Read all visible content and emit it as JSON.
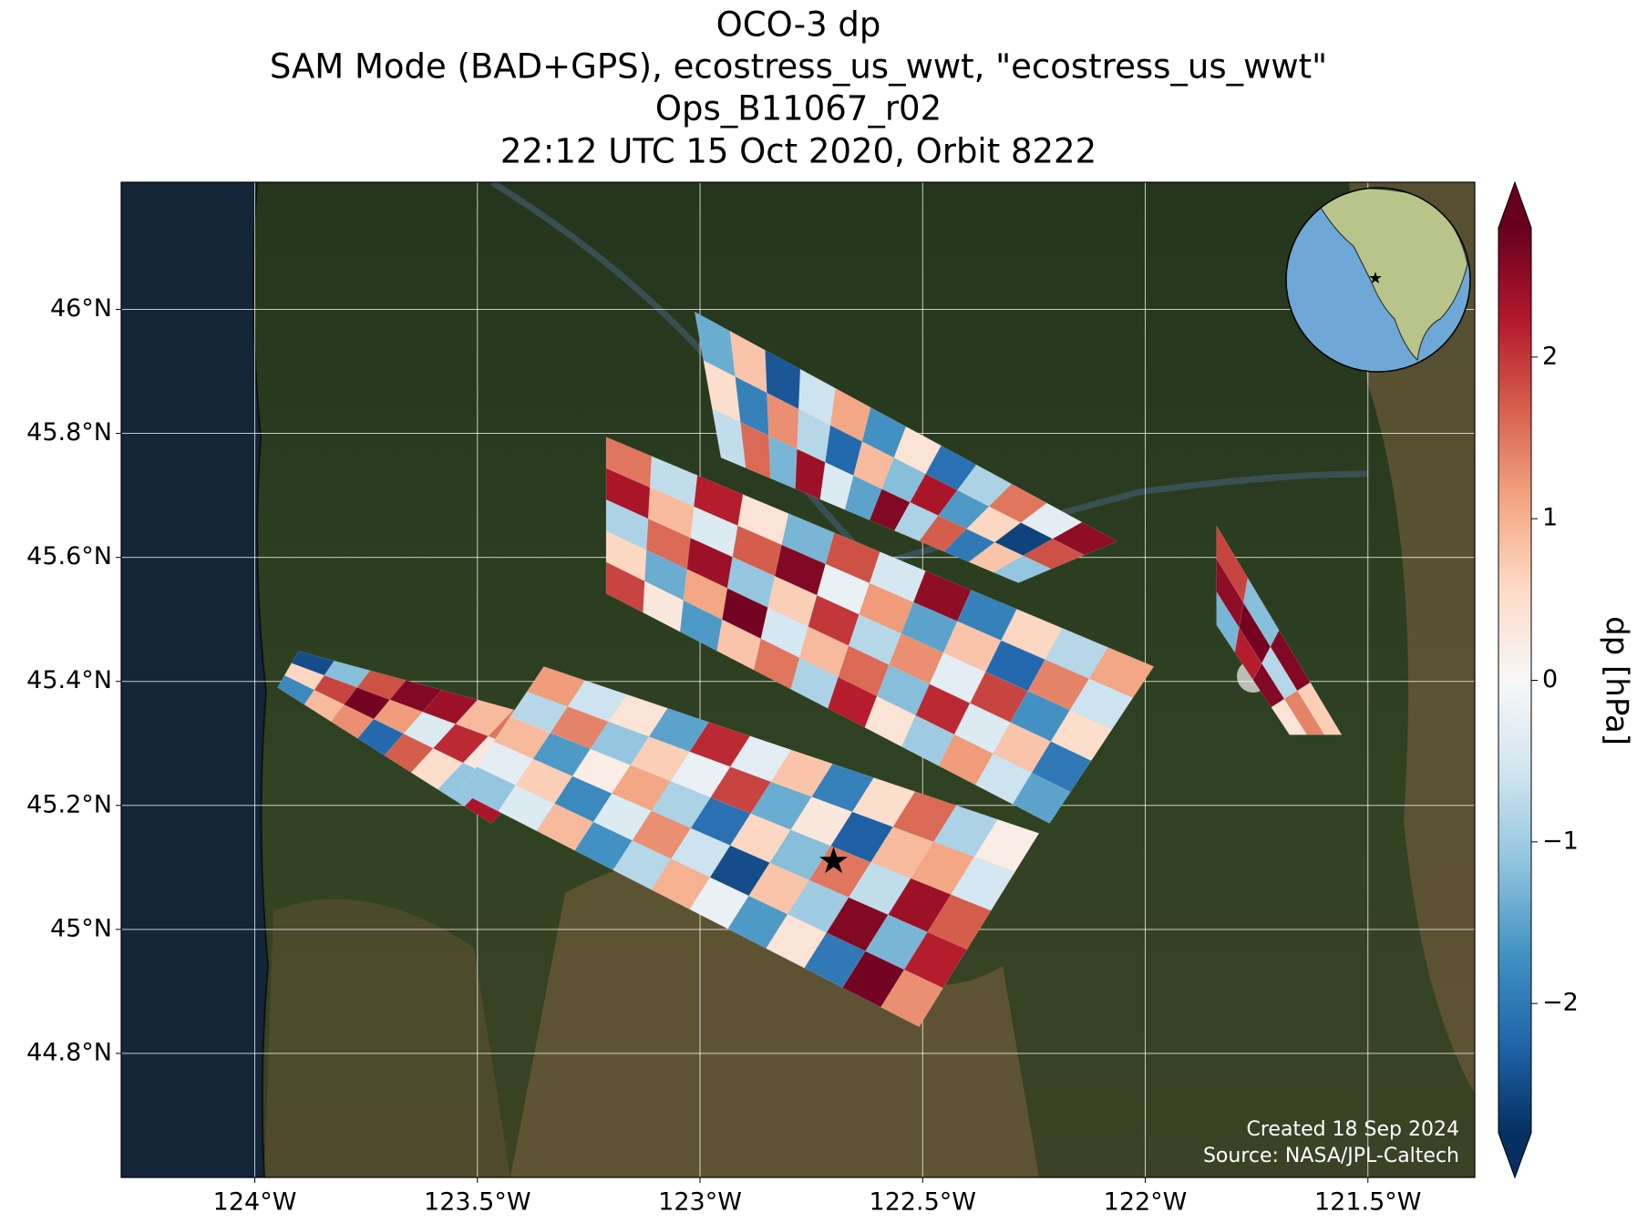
{
  "chart_data": {
    "type": "swath_map",
    "title_lines": [
      "OCO-3 dp",
      "SAM Mode (BAD+GPS), ecostress_us_wwt, \"ecostress_us_wwt\"",
      "Ops_B11067_r02",
      "22:12 UTC 15 Oct 2020, Orbit 8222"
    ],
    "colorbar_label": "dp [hPa]",
    "credits": [
      "Created 18 Sep 2024",
      "Source: NASA/JPL-Caltech"
    ],
    "xlim": [
      -124.3,
      -121.26
    ],
    "ylim": [
      44.6,
      46.205
    ],
    "xticks": [
      {
        "value": -124,
        "label": "124°W"
      },
      {
        "value": -123.5,
        "label": "123.5°W"
      },
      {
        "value": -123,
        "label": "123°W"
      },
      {
        "value": -122.5,
        "label": "122.5°W"
      },
      {
        "value": -122,
        "label": "122°W"
      },
      {
        "value": -121.5,
        "label": "121.5°W"
      }
    ],
    "yticks": [
      {
        "value": 44.8,
        "label": "44.8°N"
      },
      {
        "value": 45,
        "label": "45°N"
      },
      {
        "value": 45.2,
        "label": "45.2°N"
      },
      {
        "value": 45.4,
        "label": "45.4°N"
      },
      {
        "value": 45.6,
        "label": "45.6°N"
      },
      {
        "value": 45.8,
        "label": "45.8°N"
      },
      {
        "value": 46,
        "label": "46°N"
      }
    ],
    "grid": true,
    "clim": [
      -2.8,
      2.8
    ],
    "cticks": [
      {
        "value": -2,
        "label": "−2"
      },
      {
        "value": -1,
        "label": "−1"
      },
      0,
      1,
      2
    ],
    "colormap_colors": [
      "#053061",
      "#2166ac",
      "#4393c3",
      "#92c5de",
      "#d1e5f0",
      "#f7f7f7",
      "#fddbc7",
      "#f4a582",
      "#d6604d",
      "#b2182b",
      "#67001f"
    ],
    "target": {
      "lon": -122.7,
      "lat": 45.107,
      "color": "#ff0000"
    },
    "swaths": [
      {
        "corners": [
          [
            -123.902,
            45.449
          ],
          [
            -123.258,
            45.323
          ],
          [
            -123.469,
            45.171
          ],
          [
            -123.949,
            45.39
          ]
        ],
        "values": [
          [
            -2.5,
            -1.2,
            1.8,
            2.6,
            2.4,
            0.9,
            1.5,
            -0.8
          ],
          [
            0.6,
            1.9,
            2.7,
            1.2,
            -0.4,
            2.1,
            0.3,
            1.4
          ],
          [
            -1.8,
            0.9,
            1.3,
            -2.2,
            1.7,
            0.5,
            -1.1,
            2.3
          ]
        ]
      },
      {
        "corners": [
          [
            -123.351,
            45.424
          ],
          [
            -122.239,
            45.155
          ],
          [
            -122.508,
            44.843
          ],
          [
            -123.539,
            45.222
          ]
        ],
        "values": [
          [
            1.2,
            -0.6,
            0.4,
            -1.5,
            2.1,
            -0.3,
            0.8,
            -1.9,
            0.5,
            1.6,
            -0.9,
            0.2
          ],
          [
            -0.8,
            1.4,
            -1.1,
            0.7,
            -0.2,
            1.9,
            -1.4,
            0.3,
            -2.3,
            0.9,
            1.1,
            -0.5
          ],
          [
            0.9,
            -1.6,
            0.2,
            1.1,
            -0.9,
            -2.1,
            0.6,
            -1.2,
            1.5,
            -0.7,
            2.4,
            1.7
          ],
          [
            -0.3,
            0.7,
            -1.8,
            -0.4,
            1.3,
            -0.6,
            -2.5,
            0.8,
            -1.0,
            2.6,
            -1.3,
            2.2
          ],
          [
            -1.1,
            -0.4,
            0.9,
            -1.7,
            -0.8,
            1.0,
            -0.2,
            -1.6,
            0.4,
            -2.0,
            2.7,
            1.3
          ]
        ]
      },
      {
        "corners": [
          [
            -123.211,
            45.794
          ],
          [
            -121.981,
            45.424
          ],
          [
            -122.215,
            45.171
          ],
          [
            -123.211,
            45.542
          ]
        ],
        "values": [
          [
            1.5,
            -0.7,
            2.2,
            0.4,
            -1.3,
            1.8,
            -0.5,
            2.5,
            -1.9,
            0.6,
            -0.8,
            1.1
          ],
          [
            2.3,
            0.9,
            -0.4,
            1.7,
            2.6,
            -0.2,
            1.2,
            -1.5,
            0.8,
            -2.2,
            1.4,
            -0.6
          ],
          [
            -0.9,
            1.6,
            2.4,
            -1.1,
            0.7,
            2.0,
            -0.8,
            1.3,
            -0.3,
            1.9,
            -1.7,
            0.5
          ],
          [
            0.6,
            -1.4,
            1.1,
            2.7,
            -0.5,
            0.9,
            1.6,
            -1.2,
            2.1,
            -0.4,
            0.8,
            -2.0
          ],
          [
            1.9,
            0.3,
            -1.6,
            0.8,
            1.5,
            -0.9,
            2.2,
            0.4,
            -1.0,
            1.2,
            -0.6,
            -1.5
          ]
        ]
      },
      {
        "corners": [
          [
            -123.012,
            45.996
          ],
          [
            -122.063,
            45.626
          ],
          [
            -122.285,
            45.559
          ],
          [
            -122.953,
            45.761
          ]
        ],
        "values": [
          [
            -1.4,
            0.8,
            -2.4,
            -0.6,
            1.1,
            -1.7,
            0.4,
            -2.1,
            -0.9,
            1.5,
            -0.3,
            2.5
          ],
          [
            0.5,
            -1.9,
            1.3,
            -0.8,
            -2.2,
            0.9,
            -1.2,
            2.3,
            -1.6,
            0.6,
            -2.6,
            1.8
          ],
          [
            -0.7,
            1.6,
            -1.3,
            2.4,
            -0.4,
            -1.5,
            2.6,
            -0.9,
            1.7,
            -2.0,
            0.8,
            -1.1
          ]
        ]
      },
      {
        "corners": [
          [
            -121.84,
            45.651
          ],
          [
            -121.559,
            45.314
          ],
          [
            -121.676,
            45.314
          ],
          [
            -121.84,
            45.491
          ]
        ],
        "values": [
          [
            1.9,
            -1.2,
            2.6,
            0.7
          ],
          [
            2.5,
            2.7,
            -0.8,
            1.4
          ],
          [
            -1.3,
            2.2,
            2.6,
            0.4
          ]
        ]
      }
    ]
  }
}
